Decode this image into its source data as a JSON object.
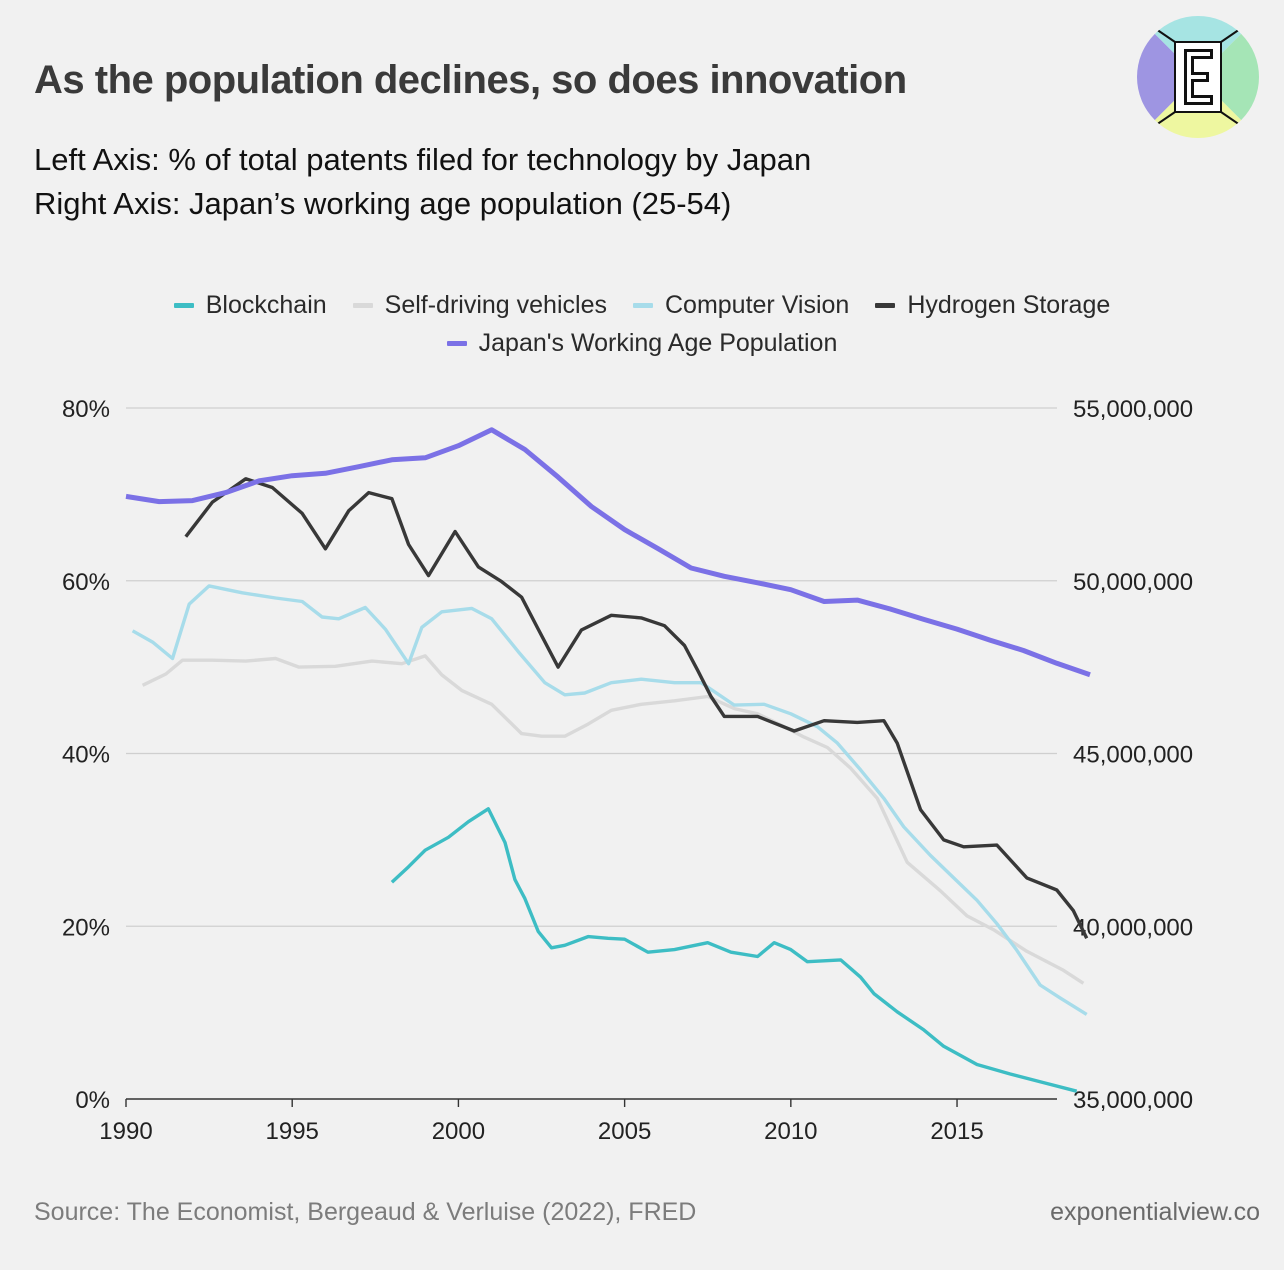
{
  "header": {
    "title": "As the population declines, so does innovation",
    "subtitle_line1": "Left Axis: % of total patents filed for technology by Japan",
    "subtitle_line2": "Right Axis: Japan’s working age population (25-54)"
  },
  "footer": {
    "source": "Source: The Economist, Bergeaud & Verluise (2022), FRED",
    "site": "exponentialview.co"
  },
  "logo": {
    "letter": "E",
    "colors": [
      "#9e95e2",
      "#a6e4e3",
      "#a5e5b6",
      "#eef7a0"
    ]
  },
  "chart_data": {
    "type": "line",
    "x_ticks": [
      1990,
      1995,
      2000,
      2005,
      2010,
      2015
    ],
    "x_range": [
      1990,
      2019
    ],
    "left_axis": {
      "range": [
        0,
        80
      ],
      "ticks": [
        "0%",
        "20%",
        "40%",
        "60%",
        "80%"
      ],
      "tick_values": [
        0,
        20,
        40,
        60,
        80
      ]
    },
    "right_axis": {
      "range": [
        35000000,
        55000000
      ],
      "ticks": [
        "35,000,000",
        "40,000,000",
        "45,000,000",
        "50,000,000",
        "55,000,000"
      ],
      "tick_values": [
        35000000,
        40000000,
        45000000,
        50000000,
        55000000
      ]
    },
    "grid": "horizontal",
    "legend_position": "top-center",
    "series": [
      {
        "name": "Blockchain",
        "color": "#3dbdc4",
        "axis": "left",
        "points": [
          [
            1998,
            25.1
          ],
          [
            1998.5,
            26.9
          ],
          [
            1999,
            28.8
          ],
          [
            1999.7,
            30.3
          ],
          [
            2000.3,
            32.1
          ],
          [
            2000.9,
            33.6
          ],
          [
            2001.4,
            29.7
          ],
          [
            2001.7,
            25.4
          ],
          [
            2002,
            23.2
          ],
          [
            2002.4,
            19.4
          ],
          [
            2002.8,
            17.5
          ],
          [
            2003.2,
            17.8
          ],
          [
            2003.9,
            18.8
          ],
          [
            2004.5,
            18.6
          ],
          [
            2005,
            18.5
          ],
          [
            2005.7,
            17.0
          ],
          [
            2006.5,
            17.3
          ],
          [
            2007.5,
            18.1
          ],
          [
            2008.2,
            17.0
          ],
          [
            2009,
            16.5
          ],
          [
            2009.5,
            18.1
          ],
          [
            2010,
            17.3
          ],
          [
            2010.5,
            15.9
          ],
          [
            2011.5,
            16.1
          ],
          [
            2012.1,
            14.1
          ],
          [
            2012.5,
            12.2
          ],
          [
            2013.2,
            10.1
          ],
          [
            2014,
            8.0
          ],
          [
            2014.6,
            6.1
          ],
          [
            2015.6,
            4.0
          ],
          [
            2016.6,
            2.9
          ],
          [
            2017.6,
            1.9
          ],
          [
            2018.6,
            0.9
          ]
        ]
      },
      {
        "name": "Self-driving vehicles",
        "color": "#d9d9d9",
        "axis": "left",
        "points": [
          [
            1990.5,
            47.9
          ],
          [
            1991.2,
            49.2
          ],
          [
            1991.7,
            50.8
          ],
          [
            1992.6,
            50.8
          ],
          [
            1993.6,
            50.7
          ],
          [
            1994.5,
            51.0
          ],
          [
            1995.2,
            50.0
          ],
          [
            1996.3,
            50.1
          ],
          [
            1997.4,
            50.7
          ],
          [
            1998.3,
            50.4
          ],
          [
            1999,
            51.3
          ],
          [
            1999.5,
            49.1
          ],
          [
            2000.1,
            47.3
          ],
          [
            2001,
            45.7
          ],
          [
            2001.9,
            42.3
          ],
          [
            2002.5,
            42.0
          ],
          [
            2003.2,
            42.0
          ],
          [
            2003.9,
            43.4
          ],
          [
            2004.6,
            45.0
          ],
          [
            2005.5,
            45.7
          ],
          [
            2006.5,
            46.1
          ],
          [
            2007.5,
            46.6
          ],
          [
            2008.3,
            45.2
          ],
          [
            2009,
            44.6
          ],
          [
            2009.7,
            43.3
          ],
          [
            2010.4,
            41.9
          ],
          [
            2011.1,
            40.7
          ],
          [
            2011.8,
            38.3
          ],
          [
            2012.6,
            34.8
          ],
          [
            2013.5,
            27.4
          ],
          [
            2014.5,
            24.1
          ],
          [
            2015.3,
            21.2
          ],
          [
            2016.1,
            19.6
          ],
          [
            2017.1,
            17.1
          ],
          [
            2018.2,
            14.9
          ],
          [
            2018.8,
            13.4
          ]
        ]
      },
      {
        "name": "Computer Vision",
        "color": "#a7dcea",
        "axis": "left",
        "points": [
          [
            1990.2,
            54.2
          ],
          [
            1990.8,
            52.9
          ],
          [
            1991.4,
            51.0
          ],
          [
            1991.9,
            57.3
          ],
          [
            1992.5,
            59.4
          ],
          [
            1993.5,
            58.6
          ],
          [
            1994.5,
            58.0
          ],
          [
            1995.3,
            57.6
          ],
          [
            1995.9,
            55.8
          ],
          [
            1996.4,
            55.6
          ],
          [
            1997.2,
            56.9
          ],
          [
            1997.8,
            54.4
          ],
          [
            1998.5,
            50.4
          ],
          [
            1998.9,
            54.6
          ],
          [
            1999.5,
            56.4
          ],
          [
            2000.4,
            56.8
          ],
          [
            2001,
            55.6
          ],
          [
            2001.8,
            51.8
          ],
          [
            2002.6,
            48.2
          ],
          [
            2003.2,
            46.8
          ],
          [
            2003.8,
            47.0
          ],
          [
            2004.6,
            48.2
          ],
          [
            2005.5,
            48.6
          ],
          [
            2006.5,
            48.2
          ],
          [
            2007.3,
            48.2
          ],
          [
            2008.3,
            45.6
          ],
          [
            2009.2,
            45.7
          ],
          [
            2010,
            44.6
          ],
          [
            2010.8,
            43.1
          ],
          [
            2011.4,
            41.2
          ],
          [
            2012.1,
            38.1
          ],
          [
            2012.8,
            34.8
          ],
          [
            2013.4,
            31.5
          ],
          [
            2014.2,
            28.2
          ],
          [
            2014.9,
            25.6
          ],
          [
            2015.6,
            23.0
          ],
          [
            2016.2,
            20.3
          ],
          [
            2016.8,
            17.2
          ],
          [
            2017.5,
            13.2
          ],
          [
            2018.1,
            11.7
          ],
          [
            2018.9,
            9.8
          ]
        ]
      },
      {
        "name": "Hydrogen Storage",
        "color": "#383838",
        "axis": "left",
        "points": [
          [
            1991.8,
            65.1
          ],
          [
            1992.6,
            69.1
          ],
          [
            1993.6,
            71.8
          ],
          [
            1994.4,
            70.8
          ],
          [
            1995.3,
            67.8
          ],
          [
            1996,
            63.7
          ],
          [
            1996.7,
            68.1
          ],
          [
            1997.3,
            70.2
          ],
          [
            1998,
            69.5
          ],
          [
            1998.5,
            64.2
          ],
          [
            1999.1,
            60.6
          ],
          [
            1999.9,
            65.7
          ],
          [
            2000.6,
            61.6
          ],
          [
            2001.3,
            59.9
          ],
          [
            2001.9,
            58.1
          ],
          [
            2002.4,
            54.4
          ],
          [
            2003,
            50.0
          ],
          [
            2003.7,
            54.3
          ],
          [
            2004.6,
            56.0
          ],
          [
            2005.5,
            55.7
          ],
          [
            2006.2,
            54.8
          ],
          [
            2006.8,
            52.5
          ],
          [
            2007.2,
            49.6
          ],
          [
            2007.6,
            46.6
          ],
          [
            2008,
            44.3
          ],
          [
            2009,
            44.3
          ],
          [
            2010.1,
            42.6
          ],
          [
            2011,
            43.8
          ],
          [
            2012,
            43.6
          ],
          [
            2012.8,
            43.8
          ],
          [
            2013.2,
            41.2
          ],
          [
            2013.9,
            33.5
          ],
          [
            2014.6,
            30.0
          ],
          [
            2015.2,
            29.2
          ],
          [
            2016.2,
            29.4
          ],
          [
            2017.1,
            25.6
          ],
          [
            2018,
            24.2
          ],
          [
            2018.5,
            21.8
          ],
          [
            2018.9,
            18.6
          ]
        ]
      },
      {
        "name": "Japan's Working Age Population",
        "color": "#7b71e6",
        "axis": "right",
        "points": [
          [
            1990,
            52.44
          ],
          [
            1991,
            52.29
          ],
          [
            1992,
            52.32
          ],
          [
            1993,
            52.55
          ],
          [
            1994,
            52.89
          ],
          [
            1995,
            53.04
          ],
          [
            1996,
            53.11
          ],
          [
            1997,
            53.3
          ],
          [
            1998,
            53.5
          ],
          [
            1999,
            53.56
          ],
          [
            2000,
            53.91
          ],
          [
            2001,
            54.37
          ],
          [
            2002,
            53.8
          ],
          [
            2003,
            53.0
          ],
          [
            2004,
            52.15
          ],
          [
            2005,
            51.48
          ],
          [
            2006,
            50.93
          ],
          [
            2007,
            50.37
          ],
          [
            2008,
            50.13
          ],
          [
            2009,
            49.94
          ],
          [
            2010,
            49.74
          ],
          [
            2011,
            49.4
          ],
          [
            2012,
            49.44
          ],
          [
            2013,
            49.18
          ],
          [
            2014,
            48.88
          ],
          [
            2015,
            48.6
          ],
          [
            2016,
            48.28
          ],
          [
            2017,
            47.98
          ],
          [
            2018,
            47.61
          ],
          [
            2019,
            47.28
          ]
        ],
        "units_note": "millions"
      }
    ]
  }
}
